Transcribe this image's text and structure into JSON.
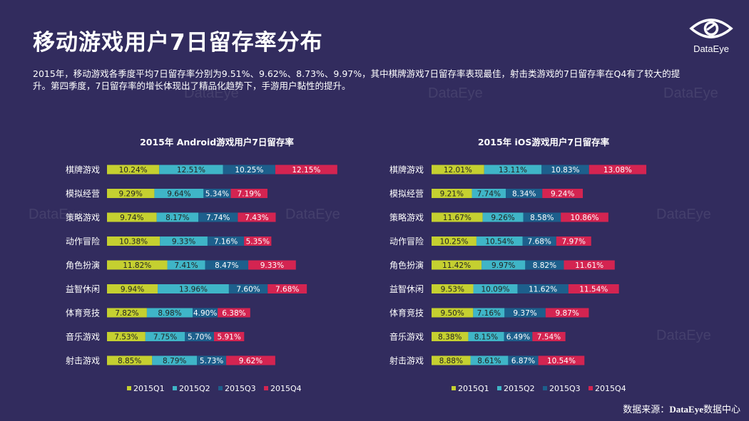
{
  "page": {
    "title": "移动游戏用户7日留存率分布",
    "summary": "2015年，移动游戏各季度平均7日留存率分别为9.51%、9.62%、8.73%、9.97%，其中棋牌游戏7日留存率表现最佳，射击类游戏的7日留存率在Q4有了较大的提升。第四季度，7日留存率的增长体现出了精品化趋势下，手游用户黏性的提升。",
    "logo_text": "DataEye",
    "source_prefix": "数据来源：",
    "source_brand": "DataEye",
    "source_suffix": "数据中心",
    "watermark": "DataEye"
  },
  "colors": {
    "background": "#322c5e",
    "q1": "#c5d030",
    "q2": "#3fb5c7",
    "q3": "#1d5f8c",
    "q4": "#d42451"
  },
  "chart_data": [
    {
      "type": "bar",
      "stacked": true,
      "orientation": "horizontal",
      "title": "2015年 Android游戏用户7日留存率",
      "categories": [
        "棋牌游戏",
        "模拟经营",
        "策略游戏",
        "动作冒险",
        "角色扮演",
        "益智休闲",
        "体育竞技",
        "音乐游戏",
        "射击游戏"
      ],
      "series": [
        {
          "name": "2015Q1",
          "values": [
            10.24,
            9.29,
            9.74,
            10.38,
            11.82,
            9.94,
            7.82,
            7.53,
            8.85
          ],
          "labels": [
            "10.24%",
            "9.29%",
            "9.74%",
            "10.38%",
            "11.82%",
            "9.94%",
            "7.82%",
            "7.53%",
            "8.85%"
          ]
        },
        {
          "name": "2015Q2",
          "values": [
            12.51,
            9.64,
            8.17,
            9.33,
            7.41,
            13.96,
            8.98,
            7.75,
            8.79
          ],
          "labels": [
            "12.51%",
            "9.64%",
            "8.17%",
            "9.33%",
            "7.41%",
            "13.96%",
            "8.98%",
            "7.75%",
            "8.79%"
          ]
        },
        {
          "name": "2015Q3",
          "values": [
            10.25,
            5.34,
            7.74,
            7.16,
            8.47,
            7.6,
            4.9,
            5.7,
            5.73
          ],
          "labels": [
            "10.25%",
            "5.34%",
            "7.74%",
            "7.16%",
            "8.47%",
            "7.60%",
            "4.90%",
            "5.70%",
            "5.73%"
          ]
        },
        {
          "name": "2015Q4",
          "values": [
            12.15,
            7.19,
            7.43,
            5.35,
            9.33,
            7.68,
            6.38,
            5.91,
            9.62
          ],
          "labels": [
            "12.15%",
            "7.19%",
            "7.43%",
            "5.35%",
            "9.33%",
            "7.68%",
            "6.38%",
            "5.91%",
            "9.62%"
          ]
        }
      ],
      "legend": "bottom"
    },
    {
      "type": "bar",
      "stacked": true,
      "orientation": "horizontal",
      "title": "2015年 iOS游戏用户7日留存率",
      "categories": [
        "棋牌游戏",
        "模拟经营",
        "策略游戏",
        "动作冒险",
        "角色扮演",
        "益智休闲",
        "体育竞技",
        "音乐游戏",
        "射击游戏"
      ],
      "series": [
        {
          "name": "2015Q1",
          "values": [
            12.01,
            9.21,
            11.67,
            10.25,
            11.42,
            9.53,
            9.5,
            8.38,
            8.88
          ],
          "labels": [
            "12.01%",
            "9.21%",
            "11.67%",
            "10.25%",
            "11.42%",
            "9.53%",
            "9.50%",
            "8.38%",
            "8.88%"
          ]
        },
        {
          "name": "2015Q2",
          "values": [
            13.11,
            7.74,
            9.26,
            10.54,
            9.97,
            10.09,
            7.16,
            8.15,
            8.61
          ],
          "labels": [
            "13.11%",
            "7.74%",
            "9.26%",
            "10.54%",
            "9.97%",
            "10.09%",
            "7.16%",
            "8.15%",
            "8.61%"
          ]
        },
        {
          "name": "2015Q3",
          "values": [
            10.83,
            8.34,
            8.58,
            7.68,
            8.82,
            11.62,
            9.37,
            6.49,
            6.87
          ],
          "labels": [
            "10.83%",
            "8.34%",
            "8.58%",
            "7.68%",
            "8.82%",
            "11.62%",
            "9.37%",
            "6.49%",
            "6.87%"
          ]
        },
        {
          "name": "2015Q4",
          "values": [
            13.08,
            9.24,
            10.86,
            7.97,
            11.61,
            11.54,
            9.87,
            7.54,
            10.54
          ],
          "labels": [
            "13.08%",
            "9.24%",
            "10.86%",
            "7.97%",
            "11.61%",
            "11.54%",
            "9.87%",
            "7.54%",
            "10.54%"
          ]
        }
      ],
      "legend": "bottom"
    }
  ]
}
